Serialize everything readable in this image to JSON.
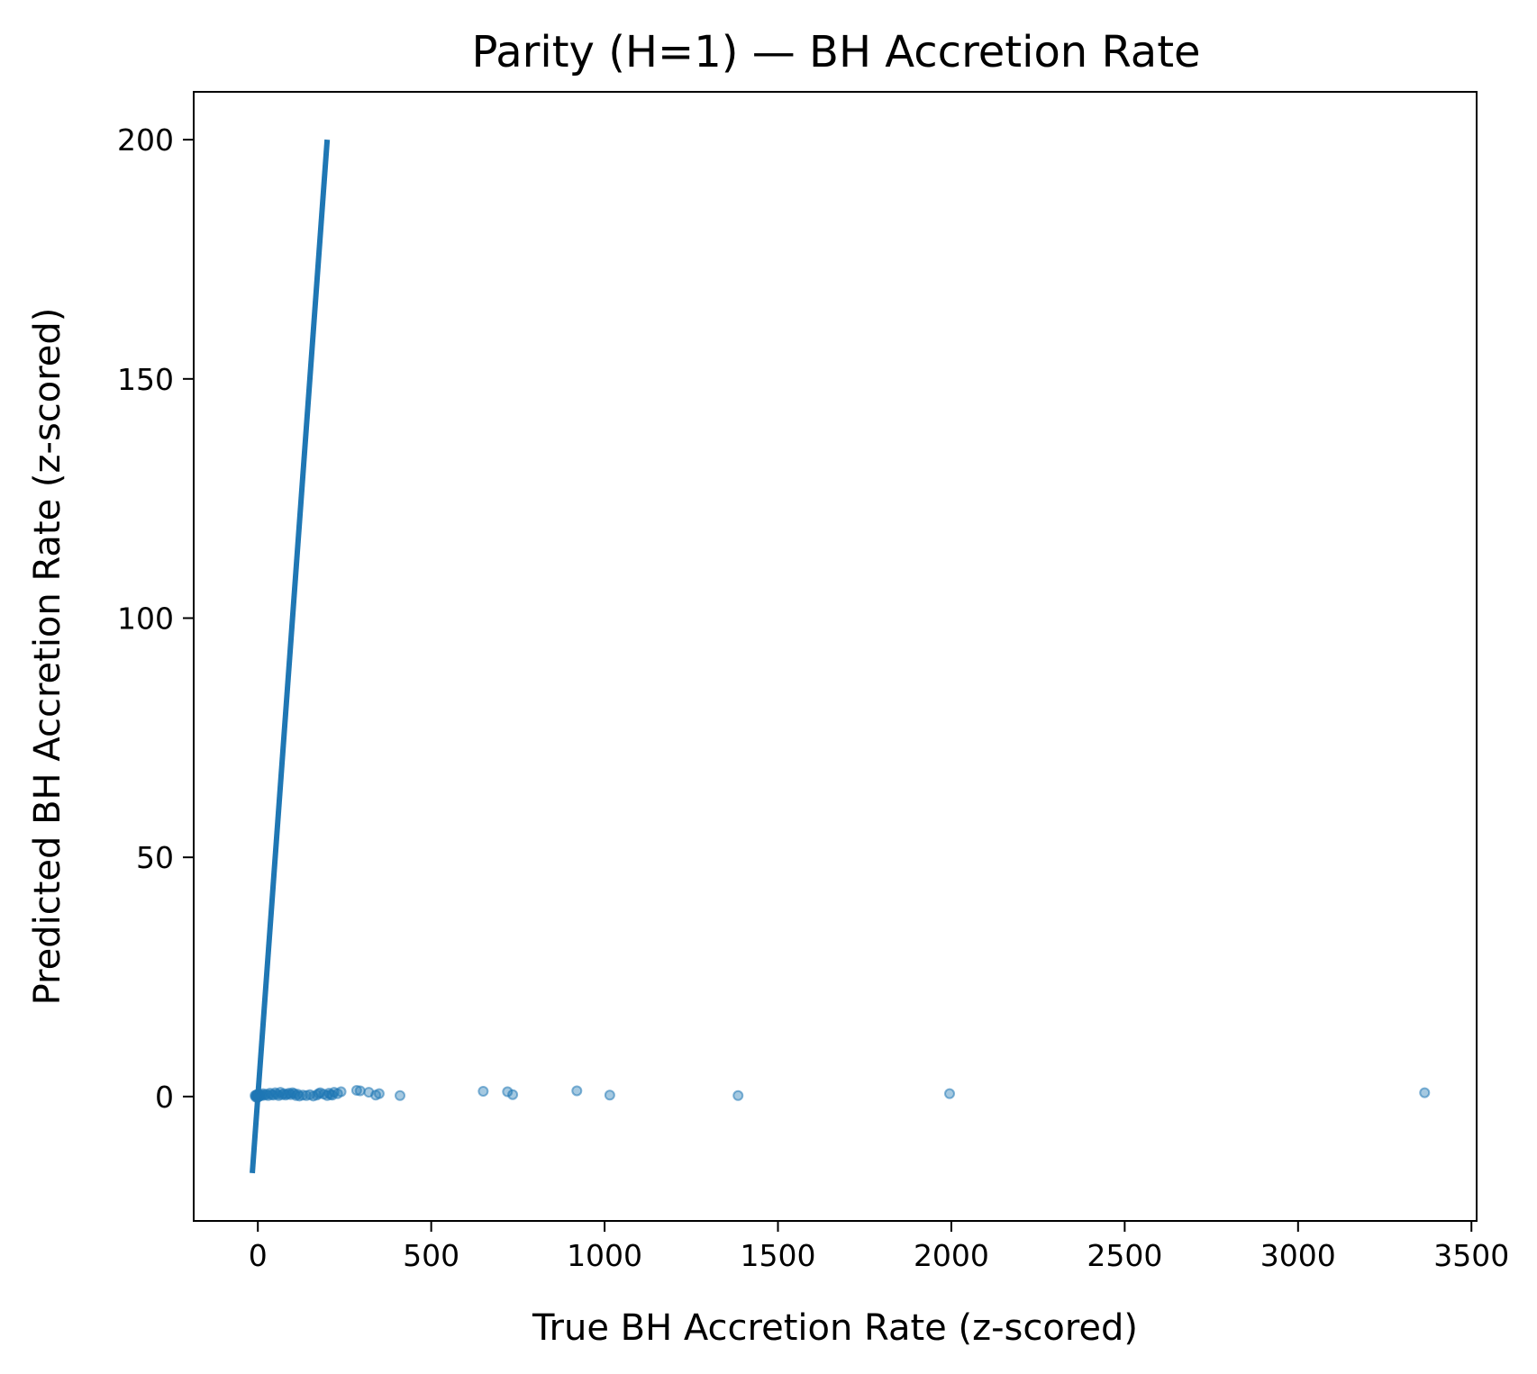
{
  "chart_data": {
    "type": "scatter",
    "title": "Parity (H=1) — BH Accretion Rate",
    "xlabel": "True BH Accretion Rate (z-scored)",
    "ylabel": "Predicted BH Accretion Rate (z-scored)",
    "xlim": [
      -185,
      3515
    ],
    "ylim": [
      -26,
      210
    ],
    "xticks": [
      0,
      500,
      1000,
      1500,
      2000,
      2500,
      3000,
      3500
    ],
    "yticks": [
      0,
      50,
      100,
      150,
      200
    ],
    "grid": false,
    "legend": "none",
    "colors": {
      "line": "#1f77b4",
      "points": "#1f77b4",
      "axes": "#000000",
      "background": "#ffffff"
    },
    "series": [
      {
        "kind": "line",
        "x": [
          -16,
          200
        ],
        "y": [
          -16,
          200
        ]
      },
      {
        "kind": "scatter",
        "alpha": 0.4,
        "x": [
          -8,
          -6,
          -5,
          -4,
          -3,
          -2,
          -1,
          0,
          1,
          2,
          3,
          5,
          8,
          12,
          15,
          20,
          25,
          30,
          35,
          40,
          45,
          50,
          55,
          60,
          65,
          70,
          75,
          80,
          85,
          90,
          95,
          100,
          105,
          110,
          115,
          120,
          130,
          140,
          150,
          160,
          170,
          175,
          180,
          190,
          200,
          205,
          210,
          215,
          220,
          230,
          240,
          285,
          295,
          320,
          340,
          350,
          410,
          650,
          720,
          735,
          920,
          1015,
          1385,
          1995,
          3365
        ],
        "y": [
          0.2,
          -0.1,
          0.3,
          0.0,
          0.4,
          0.1,
          -0.2,
          0.2,
          0.5,
          0.0,
          0.3,
          0.1,
          0.4,
          0.2,
          0.6,
          0.3,
          0.5,
          0.2,
          0.7,
          0.4,
          0.3,
          0.8,
          0.5,
          0.2,
          0.9,
          0.4,
          0.6,
          0.3,
          0.5,
          0.7,
          0.4,
          0.8,
          0.6,
          0.2,
          0.5,
          0.1,
          0.3,
          0.2,
          0.4,
          0.1,
          0.3,
          0.6,
          0.8,
          0.5,
          0.2,
          0.7,
          0.4,
          0.3,
          0.9,
          0.6,
          1.0,
          1.3,
          1.2,
          0.9,
          0.3,
          0.6,
          0.2,
          1.1,
          1.0,
          0.4,
          1.2,
          0.3,
          0.2,
          0.6,
          0.8
        ]
      }
    ]
  }
}
